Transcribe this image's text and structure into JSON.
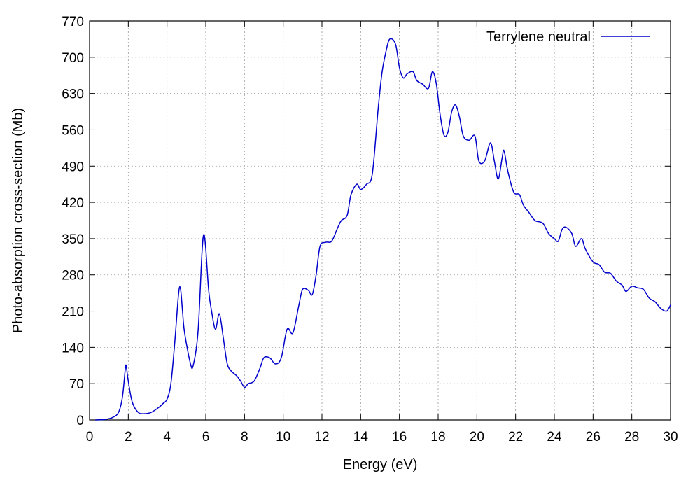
{
  "chart_data": {
    "type": "line",
    "title": "",
    "xlabel": "Energy (eV)",
    "ylabel": "Photo-absorption cross-section (Mb)",
    "xlim": [
      0,
      30
    ],
    "ylim": [
      0,
      770
    ],
    "xticks": [
      0,
      2,
      4,
      6,
      8,
      10,
      12,
      14,
      16,
      18,
      20,
      22,
      24,
      26,
      28,
      30
    ],
    "yticks": [
      0,
      70,
      140,
      210,
      280,
      350,
      420,
      490,
      560,
      630,
      700,
      770
    ],
    "grid": true,
    "legend_position": "top-right",
    "series": [
      {
        "name": "Terrylene neutral",
        "color": "#0000cc",
        "points": [
          [
            0.3,
            0
          ],
          [
            0.8,
            1
          ],
          [
            1.2,
            5
          ],
          [
            1.5,
            15
          ],
          [
            1.7,
            45
          ],
          [
            1.85,
            100
          ],
          [
            1.9,
            102
          ],
          [
            2.0,
            75
          ],
          [
            2.2,
            35
          ],
          [
            2.5,
            15
          ],
          [
            2.8,
            12
          ],
          [
            3.2,
            15
          ],
          [
            3.6,
            25
          ],
          [
            3.8,
            32
          ],
          [
            4.0,
            40
          ],
          [
            4.2,
            70
          ],
          [
            4.4,
            150
          ],
          [
            4.6,
            245
          ],
          [
            4.7,
            252
          ],
          [
            4.8,
            210
          ],
          [
            4.9,
            170
          ],
          [
            5.2,
            110
          ],
          [
            5.35,
            105
          ],
          [
            5.6,
            170
          ],
          [
            5.8,
            320
          ],
          [
            5.9,
            358
          ],
          [
            6.0,
            330
          ],
          [
            6.15,
            250
          ],
          [
            6.3,
            210
          ],
          [
            6.5,
            175
          ],
          [
            6.7,
            205
          ],
          [
            6.9,
            160
          ],
          [
            7.1,
            110
          ],
          [
            7.3,
            95
          ],
          [
            7.6,
            85
          ],
          [
            7.8,
            75
          ],
          [
            8.0,
            63
          ],
          [
            8.2,
            70
          ],
          [
            8.5,
            75
          ],
          [
            8.8,
            100
          ],
          [
            9.0,
            120
          ],
          [
            9.3,
            120
          ],
          [
            9.6,
            108
          ],
          [
            9.9,
            120
          ],
          [
            10.2,
            175
          ],
          [
            10.5,
            168
          ],
          [
            10.8,
            220
          ],
          [
            11.0,
            252
          ],
          [
            11.3,
            250
          ],
          [
            11.5,
            242
          ],
          [
            11.7,
            280
          ],
          [
            11.9,
            335
          ],
          [
            12.2,
            343
          ],
          [
            12.5,
            345
          ],
          [
            12.8,
            370
          ],
          [
            13.0,
            385
          ],
          [
            13.3,
            395
          ],
          [
            13.5,
            435
          ],
          [
            13.8,
            455
          ],
          [
            14.0,
            445
          ],
          [
            14.3,
            455
          ],
          [
            14.6,
            475
          ],
          [
            14.9,
            600
          ],
          [
            15.1,
            670
          ],
          [
            15.3,
            710
          ],
          [
            15.5,
            735
          ],
          [
            15.8,
            725
          ],
          [
            16.0,
            680
          ],
          [
            16.2,
            660
          ],
          [
            16.4,
            668
          ],
          [
            16.7,
            672
          ],
          [
            16.9,
            655
          ],
          [
            17.2,
            648
          ],
          [
            17.5,
            640
          ],
          [
            17.7,
            672
          ],
          [
            17.9,
            650
          ],
          [
            18.1,
            590
          ],
          [
            18.3,
            550
          ],
          [
            18.5,
            555
          ],
          [
            18.7,
            595
          ],
          [
            18.9,
            608
          ],
          [
            19.1,
            585
          ],
          [
            19.3,
            548
          ],
          [
            19.6,
            540
          ],
          [
            19.9,
            548
          ],
          [
            20.1,
            500
          ],
          [
            20.4,
            500
          ],
          [
            20.7,
            535
          ],
          [
            20.9,
            500
          ],
          [
            21.1,
            465
          ],
          [
            21.3,
            505
          ],
          [
            21.4,
            520
          ],
          [
            21.6,
            480
          ],
          [
            21.9,
            440
          ],
          [
            22.2,
            435
          ],
          [
            22.4,
            415
          ],
          [
            22.7,
            400
          ],
          [
            23.0,
            385
          ],
          [
            23.4,
            380
          ],
          [
            23.7,
            360
          ],
          [
            24.0,
            350
          ],
          [
            24.2,
            345
          ],
          [
            24.4,
            368
          ],
          [
            24.6,
            372
          ],
          [
            24.9,
            360
          ],
          [
            25.1,
            335
          ],
          [
            25.4,
            350
          ],
          [
            25.6,
            330
          ],
          [
            26.0,
            305
          ],
          [
            26.3,
            300
          ],
          [
            26.6,
            285
          ],
          [
            26.9,
            283
          ],
          [
            27.2,
            268
          ],
          [
            27.5,
            260
          ],
          [
            27.7,
            248
          ],
          [
            28.0,
            258
          ],
          [
            28.3,
            255
          ],
          [
            28.6,
            252
          ],
          [
            28.9,
            235
          ],
          [
            29.2,
            228
          ],
          [
            29.5,
            215
          ],
          [
            29.8,
            210
          ],
          [
            30.0,
            222
          ]
        ]
      }
    ]
  }
}
